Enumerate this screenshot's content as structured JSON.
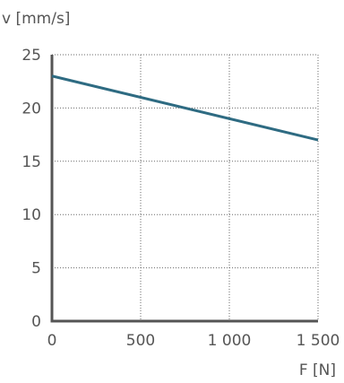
{
  "chart_data": {
    "type": "line",
    "ylabel": "v [mm/s]",
    "xlabel": "F [N]",
    "xlim": [
      0,
      1500
    ],
    "ylim": [
      0,
      25
    ],
    "x_ticks": [
      0,
      500,
      1000,
      1500
    ],
    "x_tick_labels": [
      "0",
      "500",
      "1 000",
      "1 500"
    ],
    "y_ticks": [
      0,
      5,
      10,
      15,
      20,
      25
    ],
    "y_tick_labels": [
      "0",
      "5",
      "10",
      "15",
      "20",
      "25"
    ],
    "grid": true,
    "series": [
      {
        "x": [
          0,
          1500
        ],
        "y": [
          23,
          17
        ],
        "color": "#2e6b82"
      }
    ]
  }
}
